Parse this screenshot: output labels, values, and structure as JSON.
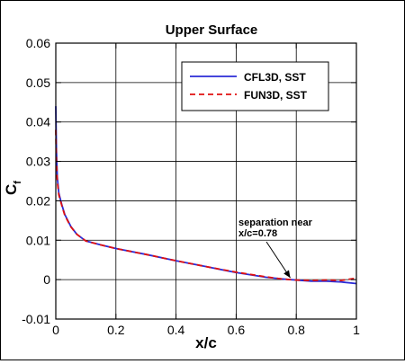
{
  "chart_data": {
    "type": "line",
    "title": "Upper Surface",
    "xlabel": "x/c",
    "ylabel_main": "C",
    "ylabel_sub": "f",
    "xlim": [
      0,
      1
    ],
    "ylim": [
      -0.01,
      0.06
    ],
    "xticks": [
      0,
      0.2,
      0.4,
      0.6,
      0.8,
      1
    ],
    "xtick_labels": [
      "0",
      "0.2",
      "0.4",
      "0.6",
      "0.8",
      "1"
    ],
    "yticks": [
      -0.01,
      0,
      0.01,
      0.02,
      0.03,
      0.04,
      0.05,
      0.06
    ],
    "ytick_labels": [
      "-0.01",
      "0",
      "0.01",
      "0.02",
      "0.03",
      "0.04",
      "0.05",
      "0.06"
    ],
    "grid": true,
    "legend_position": "top-right",
    "series": [
      {
        "name": "CFL3D, SST",
        "color": "#2b2bd6",
        "style": "solid",
        "x": [
          0,
          0.002,
          0.005,
          0.01,
          0.02,
          0.03,
          0.05,
          0.07,
          0.1,
          0.15,
          0.2,
          0.3,
          0.4,
          0.5,
          0.6,
          0.7,
          0.75,
          0.78,
          0.8,
          0.85,
          0.9,
          0.95,
          1.0
        ],
        "y": [
          0.044,
          0.033,
          0.026,
          0.022,
          0.019,
          0.0165,
          0.0135,
          0.0115,
          0.0098,
          0.0088,
          0.0079,
          0.0064,
          0.0048,
          0.0033,
          0.0018,
          0.0006,
          0.0002,
          0.0,
          -0.0001,
          -0.0004,
          -0.0004,
          -0.0006,
          -0.001
        ]
      },
      {
        "name": "FUN3D, SST",
        "color": "#e01010",
        "style": "dashed",
        "x": [
          0,
          0.002,
          0.005,
          0.01,
          0.02,
          0.03,
          0.05,
          0.07,
          0.1,
          0.15,
          0.2,
          0.3,
          0.4,
          0.5,
          0.6,
          0.7,
          0.75,
          0.78,
          0.8,
          0.85,
          0.9,
          0.95,
          1.0
        ],
        "y": [
          0.038,
          0.03,
          0.025,
          0.0215,
          0.0188,
          0.0163,
          0.0134,
          0.0115,
          0.0098,
          0.0088,
          0.0079,
          0.0064,
          0.0048,
          0.0033,
          0.0019,
          0.0007,
          0.0002,
          0.0,
          -0.0001,
          -0.0002,
          -0.0001,
          -0.0002,
          0.0004
        ]
      }
    ],
    "annotations": [
      {
        "text_lines": [
          "separation near",
          "x/c=0.78"
        ],
        "points_to": [
          0.78,
          0.0
        ]
      }
    ]
  }
}
